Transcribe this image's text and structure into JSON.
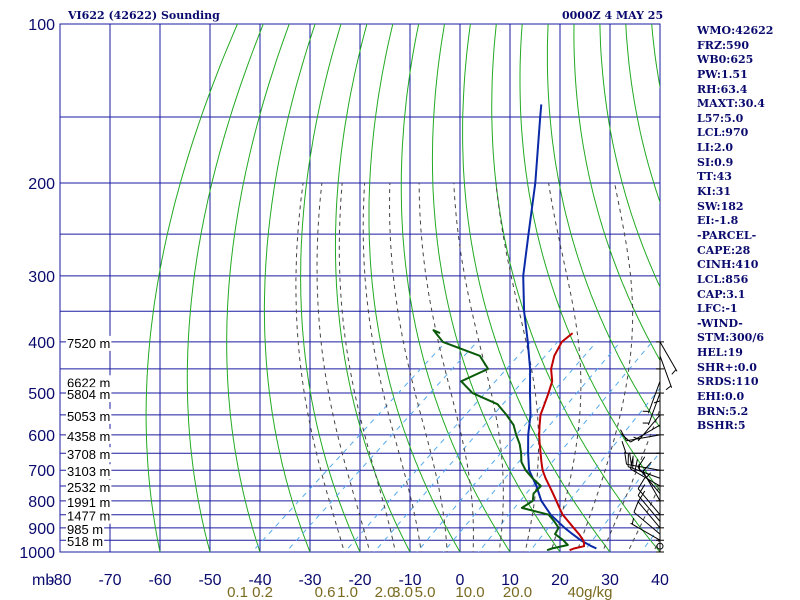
{
  "header": {
    "station": "VI622 (42622) Sounding",
    "time": "0000Z  4 MAY 25"
  },
  "stats": [
    "WMO:42622",
    "FRZ:590",
    "WB0:625",
    "PW:1.51",
    "RH:63.4",
    "MAXT:30.4",
    "L57:5.0",
    "LCL:970",
    "LI:2.0",
    "SI:0.9",
    "TT:43",
    "KI:31",
    "SW:182",
    "EI:-1.8",
    "-PARCEL-",
    "CAPE:28",
    "CINH:410",
    "LCL:856",
    "CAP:3.1",
    "LFC:-1",
    "-WIND-",
    "STM:300/6",
    "HEL:19",
    "SHR+:0.0",
    "SRDS:110",
    "EHI:0.0",
    "BRN:5.2",
    "BSHR:5"
  ],
  "colors": {
    "grid": "#1a1aa0",
    "dry_adiabat": "#22aa22",
    "moist_adiabat": "#444444",
    "mixing_ratio": "#55aaee",
    "temperature": "#c00000",
    "dewpoint": "#0a5a0a",
    "parcel": "#0a2aa8",
    "axis_text": "#0a0a6e",
    "mixing_text": "#7a6a20",
    "wind": "#000000"
  },
  "chart_data": {
    "type": "line",
    "chart_kind": "skew-t log-p sounding",
    "y_scale": "log",
    "y_axis_unit": "mb",
    "y_ticks": [
      100,
      200,
      300,
      400,
      500,
      600,
      700,
      800,
      900,
      1000
    ],
    "x_axis_unit": "°C",
    "x_ticks": [
      -80,
      -70,
      -60,
      -50,
      -40,
      -30,
      -20,
      -10,
      0,
      10,
      20,
      30,
      40
    ],
    "x_tick_labels": [
      "-80",
      "-70",
      "-60",
      "-50",
      "-40",
      "-30",
      "-20",
      "-10",
      "0",
      "10",
      "20",
      "30",
      "40"
    ],
    "mixing_ratio_labels": [
      "0.1",
      "0.2",
      "0.6",
      "1.0",
      "2.0",
      "3.0",
      "5.0",
      "10.0",
      "20.0",
      "40g/kg"
    ],
    "mixing_ratio_label_x": [
      -44.5,
      -39.5,
      -27,
      -22.5,
      -15,
      -11.5,
      -7,
      2,
      11.5,
      26
    ],
    "mixing_ratio_values": [
      0.1,
      0.2,
      0.6,
      1.0,
      2.0,
      3.0,
      5.0,
      10.0,
      20.0,
      40.0
    ],
    "height_labels": [
      {
        "p": 400,
        "label": "7520 m"
      },
      {
        "p": 475,
        "label": "6622 m"
      },
      {
        "p": 500,
        "label": "5804 m"
      },
      {
        "p": 550,
        "label": "5053 m"
      },
      {
        "p": 600,
        "label": "4358 m"
      },
      {
        "p": 650,
        "label": "3708 m"
      },
      {
        "p": 700,
        "label": "3103 m"
      },
      {
        "p": 750,
        "label": "2532 m"
      },
      {
        "p": 800,
        "label": "1991 m"
      },
      {
        "p": 850,
        "label": "1477 m"
      },
      {
        "p": 900,
        "label": "985 m"
      },
      {
        "p": 950,
        "label": "518 m"
      }
    ],
    "series": [
      {
        "key": "temperature",
        "p": [
          992,
          985,
          975,
          965,
          950,
          925,
          900,
          875,
          850,
          825,
          800,
          775,
          750,
          725,
          700,
          675,
          650,
          625,
          600,
          575,
          550,
          525,
          500,
          475,
          450,
          425,
          400,
          385
        ],
        "t": [
          21.5,
          22,
          23.5,
          23,
          22,
          19.8,
          17.3,
          14.8,
          12.2,
          10,
          7.8,
          5.5,
          3.1,
          0.6,
          -1.8,
          -3.9,
          -6,
          -8.2,
          -10.4,
          -12.5,
          -14.6,
          -16.2,
          -17.9,
          -19.8,
          -22.8,
          -25.1,
          -26.7,
          -26.5
        ]
      },
      {
        "key": "dewpoint",
        "p": [
          992,
          985,
          970,
          950,
          925,
          900,
          875,
          850,
          825,
          800,
          775,
          750,
          725,
          700,
          675,
          650,
          625,
          600,
          575,
          550,
          525,
          500,
          475,
          450,
          425,
          400,
          380,
          385
        ],
        "t": [
          17,
          17.6,
          20,
          18,
          15,
          14.3,
          12,
          9.4,
          2.5,
          3.1,
          1.6,
          1.4,
          -2,
          -5.2,
          -7.9,
          -9.9,
          -12.2,
          -15,
          -17.7,
          -21.4,
          -25.6,
          -33.1,
          -38,
          -35.4,
          -40,
          -50.5,
          -55,
          -53
        ]
      },
      {
        "key": "parcel",
        "p": [
          985,
          975,
          950,
          925,
          900,
          850,
          800,
          750,
          700,
          650,
          600,
          550,
          500,
          450,
          400,
          350,
          300,
          250,
          200,
          150,
          142
        ],
        "t": [
          26.5,
          25,
          21.5,
          18.5,
          15.5,
          9.8,
          4.8,
          0.5,
          -4.5,
          -8.5,
          -12.6,
          -16.6,
          -21.6,
          -27,
          -33.5,
          -41.1,
          -49.2,
          -57.5,
          -67.6,
          -81.4,
          -84
        ]
      }
    ],
    "wind_barbs": [
      {
        "p": 975,
        "dir": 300,
        "spd": 0
      },
      {
        "p": 950,
        "dir": 300,
        "spd": 5
      },
      {
        "p": 925,
        "dir": 310,
        "spd": 10
      },
      {
        "p": 900,
        "dir": 320,
        "spd": 10
      },
      {
        "p": 875,
        "dir": 320,
        "spd": 10
      },
      {
        "p": 850,
        "dir": 320,
        "spd": 10
      },
      {
        "p": 800,
        "dir": 330,
        "spd": 15
      },
      {
        "p": 775,
        "dir": 320,
        "spd": 15
      },
      {
        "p": 750,
        "dir": 300,
        "spd": 20
      },
      {
        "p": 725,
        "dir": 290,
        "spd": 25
      },
      {
        "p": 700,
        "dir": 280,
        "spd": 20
      },
      {
        "p": 650,
        "dir": 270,
        "spd": 10
      },
      {
        "p": 600,
        "dir": 260,
        "spd": 10
      },
      {
        "p": 575,
        "dir": 240,
        "spd": 10
      },
      {
        "p": 550,
        "dir": 220,
        "spd": 5
      },
      {
        "p": 500,
        "dir": 200,
        "spd": 5
      },
      {
        "p": 475,
        "dir": 200,
        "spd": 5
      },
      {
        "p": 450,
        "dir": 180,
        "spd": 5
      },
      {
        "p": 425,
        "dir": 160,
        "spd": 5
      },
      {
        "p": 400,
        "dir": 150,
        "spd": 5
      }
    ]
  }
}
